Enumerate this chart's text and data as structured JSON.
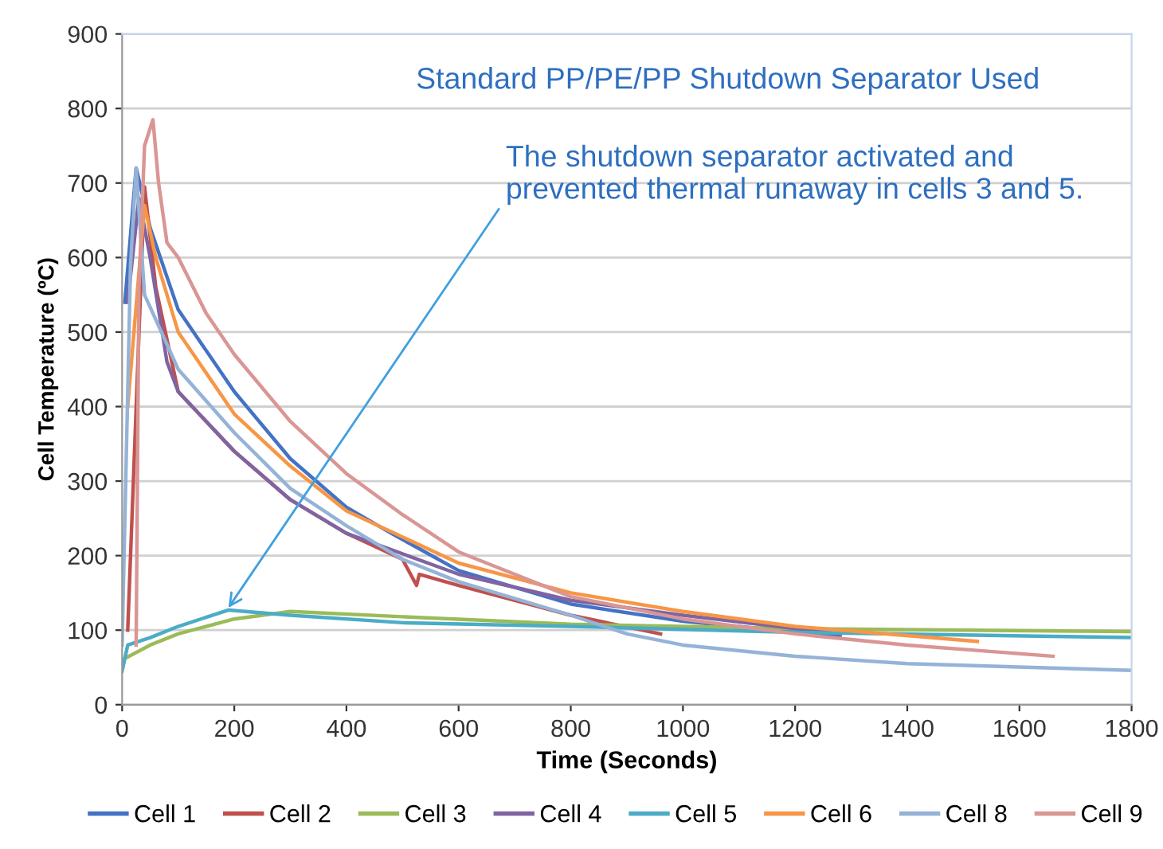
{
  "chart_data": {
    "type": "line",
    "title": "Standard PP/PE/PP Shutdown Separator Used",
    "xlabel": "Time (Seconds)",
    "ylabel": "Cell Temperature (ºC)",
    "xlim": [
      0,
      1800
    ],
    "xticks": [
      0,
      200,
      400,
      600,
      800,
      1000,
      1200,
      1400,
      1600,
      1800
    ],
    "ylim": [
      0,
      900
    ],
    "yticks": [
      0,
      100,
      200,
      300,
      400,
      500,
      600,
      700,
      800,
      900
    ],
    "grid": "y",
    "legend": "bottom",
    "marker": "none",
    "line_style": "solid",
    "annotations": [
      {
        "text": "The shutdown separator activated and\nprevented thermal runaway in cells 3 and 5.",
        "x": 185,
        "y": 125
      }
    ],
    "series": [
      {
        "name": "Cell 1",
        "color": "#4472c4",
        "x": [
          5,
          25,
          50,
          100,
          200,
          300,
          400,
          480,
          600,
          800,
          1000,
          1280
        ],
        "values": [
          540,
          720,
          640,
          530,
          420,
          330,
          265,
          230,
          180,
          135,
          112,
          92
        ]
      },
      {
        "name": "Cell 2",
        "color": "#c0504d",
        "x": [
          10,
          40,
          60,
          100,
          200,
          300,
          400,
          500,
          525,
          530,
          600,
          800,
          960
        ],
        "values": [
          100,
          695,
          560,
          420,
          340,
          275,
          230,
          195,
          160,
          175,
          160,
          120,
          95
        ]
      },
      {
        "name": "Cell 3",
        "color": "#9bbb59",
        "x": [
          0,
          50,
          100,
          200,
          300,
          500,
          800,
          1200,
          1800
        ],
        "values": [
          60,
          80,
          95,
          115,
          125,
          118,
          108,
          102,
          98
        ]
      },
      {
        "name": "Cell 4",
        "color": "#8064a2",
        "x": [
          10,
          30,
          50,
          80,
          100,
          200,
          300,
          400,
          600,
          800,
          1000,
          1280
        ],
        "values": [
          540,
          680,
          600,
          460,
          420,
          340,
          275,
          230,
          175,
          140,
          120,
          95
        ]
      },
      {
        "name": "Cell 5",
        "color": "#4bacc6",
        "x": [
          0,
          10,
          50,
          100,
          190,
          300,
          500,
          800,
          1200,
          1800
        ],
        "values": [
          45,
          80,
          90,
          105,
          127,
          120,
          110,
          105,
          97,
          90
        ]
      },
      {
        "name": "Cell 6",
        "color": "#f79646",
        "x": [
          10,
          40,
          60,
          100,
          200,
          300,
          400,
          600,
          800,
          1000,
          1200,
          1525
        ],
        "values": [
          400,
          670,
          600,
          500,
          390,
          320,
          260,
          190,
          150,
          125,
          105,
          85
        ]
      },
      {
        "name": "Cell 8",
        "color": "#95b3d7",
        "x": [
          0,
          15,
          25,
          40,
          100,
          200,
          300,
          400,
          500,
          600,
          800,
          900,
          1000,
          1200,
          1400,
          1800
        ],
        "values": [
          80,
          590,
          720,
          550,
          450,
          365,
          290,
          240,
          195,
          165,
          120,
          95,
          80,
          65,
          55,
          46
        ]
      },
      {
        "name": "Cell 9",
        "color": "#d99694",
        "x": [
          25,
          30,
          40,
          55,
          65,
          80,
          100,
          150,
          200,
          300,
          400,
          500,
          600,
          800,
          1000,
          1200,
          1400,
          1660
        ],
        "values": [
          80,
          560,
          750,
          785,
          700,
          620,
          600,
          525,
          470,
          380,
          310,
          255,
          205,
          145,
          115,
          95,
          80,
          65
        ]
      }
    ]
  }
}
